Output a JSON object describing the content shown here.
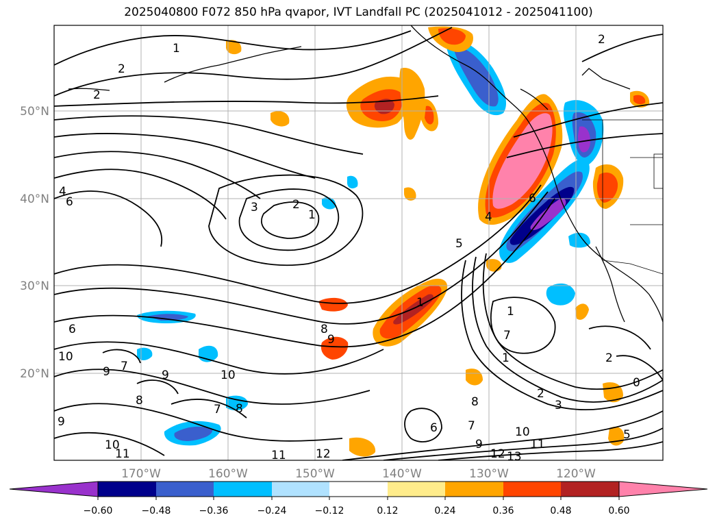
{
  "title": "2025040800 F072 850 hPa qvapor, IVT Landfall PC (2025041012 - 2025041100)",
  "lat_labels": [
    "50°N",
    "40°N",
    "30°N",
    "20°N"
  ],
  "lon_labels": [
    "170°W",
    "160°W",
    "150°W",
    "140°W",
    "130°W",
    "120°W"
  ],
  "colorbar": {
    "ticks": [
      "−0.60",
      "−0.48",
      "−0.36",
      "−0.24",
      "−0.12",
      "0.12",
      "0.24",
      "0.36",
      "0.48",
      "0.60"
    ],
    "colors": [
      "#9932cc",
      "#00008b",
      "#3a5fcd",
      "#00bfff",
      "#b0e2ff",
      "#ffffff",
      "#ffec8b",
      "#ffa500",
      "#ff4500",
      "#b22222",
      "#ff82ab"
    ]
  },
  "contour_labels": [
    "1",
    "2",
    "2",
    "4",
    "6",
    "3",
    "2",
    "1",
    "5",
    "4",
    "6",
    "8",
    "9",
    "10",
    "7",
    "9",
    "9",
    "10",
    "8",
    "7",
    "8",
    "9",
    "10",
    "11",
    "11",
    "12",
    "1",
    "1",
    "2",
    "2",
    "3",
    "0",
    "6",
    "7",
    "9",
    "10",
    "11",
    "12",
    "13",
    "2",
    "1",
    "6",
    "5",
    "8",
    "7"
  ]
}
